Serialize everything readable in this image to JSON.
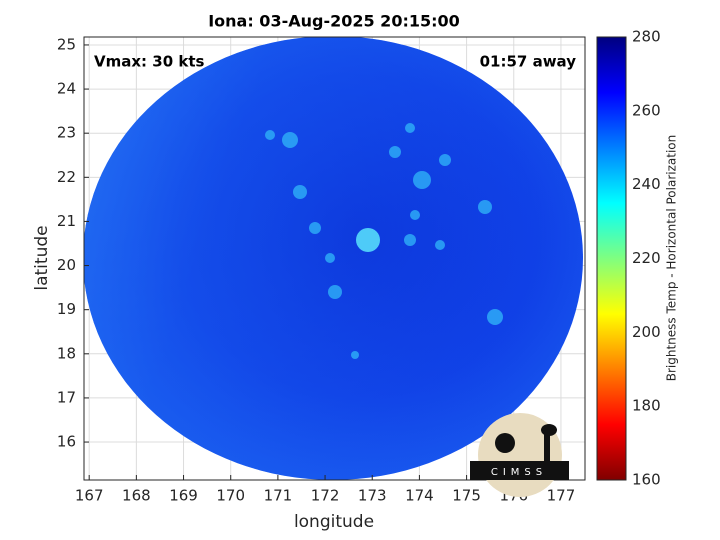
{
  "chart_data": {
    "type": "image",
    "title": "Iona: 03-Aug-2025 20:15:00",
    "xlabel": "longitude",
    "ylabel": "latitude",
    "annotations": [
      "Vmax: 30 kts",
      "01:57 away"
    ],
    "logo": "CIMSS",
    "xlim": [
      166.89,
      177.51
    ],
    "xticks": [
      167,
      168,
      169,
      170,
      171,
      172,
      173,
      174,
      175,
      176,
      177
    ],
    "ylim": [
      15.14,
      25.18
    ],
    "yticks": [
      16,
      17,
      18,
      19,
      20,
      21,
      22,
      23,
      24,
      25
    ],
    "grid": true,
    "colorbar": {
      "label": "Brightness Temp - Horizontal Polarization",
      "colormap": "jet",
      "lim": [
        160,
        280
      ],
      "ticks": [
        160,
        180,
        200,
        220,
        240,
        260,
        280
      ]
    }
  }
}
